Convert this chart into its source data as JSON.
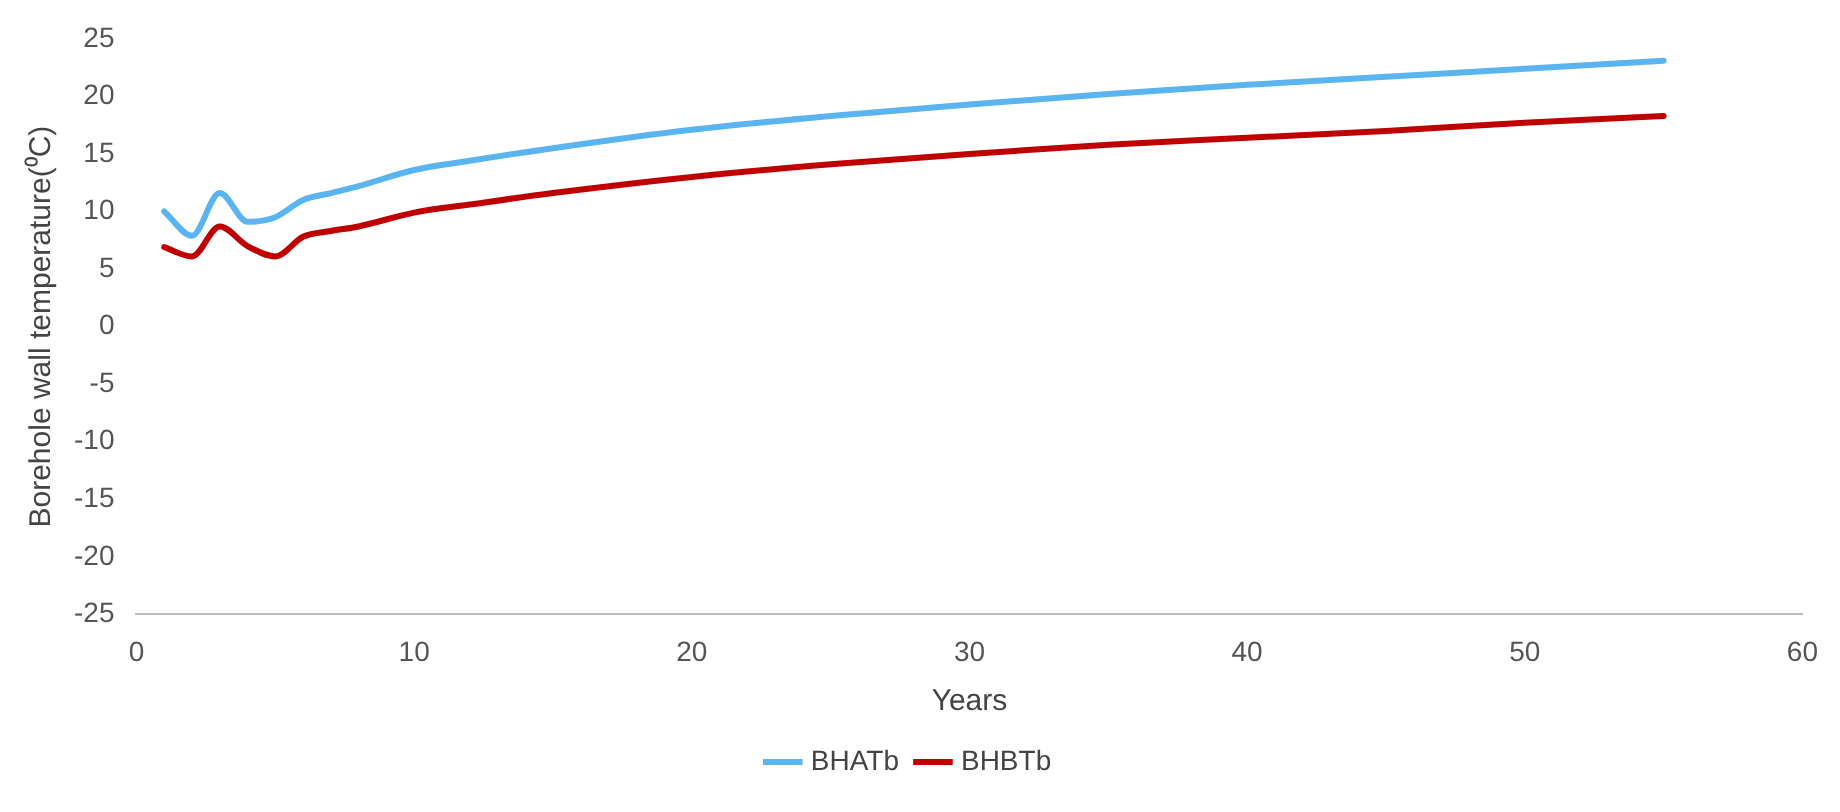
{
  "chart_data": {
    "type": "line",
    "xlabel": "Years",
    "ylabel": "Borehole wall temperature(⁰C)",
    "xlim": [
      0,
      60
    ],
    "xticks": [
      0,
      10,
      20,
      30,
      40,
      50,
      60
    ],
    "ylim": [
      -25,
      25
    ],
    "yticks": [
      -25,
      -20,
      -15,
      -10,
      -5,
      0,
      5,
      10,
      15,
      20,
      25
    ],
    "grid": false,
    "legend": "bottom",
    "marker": "none",
    "line_style": "solid",
    "x": [
      1,
      2,
      3,
      4,
      5,
      6,
      7,
      8,
      10,
      12,
      15,
      20,
      25,
      30,
      35,
      40,
      45,
      50,
      55
    ],
    "series": [
      {
        "name": "BHATb",
        "color": "#5ab4f0",
        "values": [
          10,
          7.9,
          11.6,
          9.1,
          9.5,
          11,
          11.6,
          12.2,
          13.6,
          14.4,
          15.5,
          17.1,
          18.3,
          19.3,
          20.2,
          21,
          21.7,
          22.4,
          23.1
        ]
      },
      {
        "name": "BHBTb",
        "color": "#c00000",
        "values": [
          6.9,
          6.1,
          8.7,
          7,
          6.1,
          7.8,
          8.3,
          8.7,
          9.9,
          10.6,
          11.6,
          13,
          14.1,
          15,
          15.8,
          16.4,
          17,
          17.7,
          18.3
        ]
      }
    ]
  }
}
